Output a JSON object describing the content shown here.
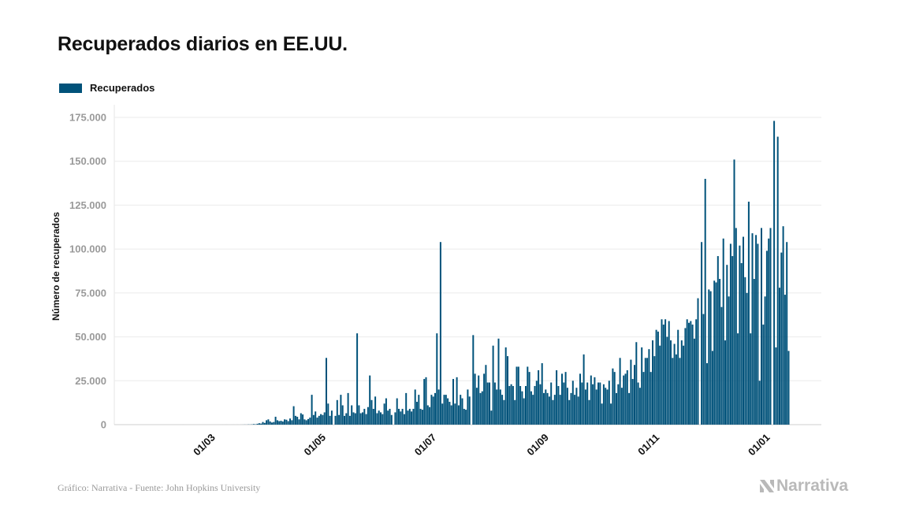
{
  "chart_data": {
    "type": "bar",
    "title": "Recuperados diarios en EE.UU.",
    "ylabel": "Número de recuperados",
    "xlabel": "",
    "x_first": "2020-01-22",
    "x_last": "2021-01-10",
    "interval": "daily",
    "ylim": [
      0,
      175000
    ],
    "yticks": [
      0,
      25000,
      50000,
      75000,
      100000,
      125000,
      150000,
      175000
    ],
    "ytick_labels": [
      "0",
      "25.000",
      "50.000",
      "75.000",
      "100.000",
      "125.000",
      "150.000",
      "175.000"
    ],
    "xticks": [
      {
        "date": "2020-03-01",
        "label": "01/03"
      },
      {
        "date": "2020-05-01",
        "label": "01/05"
      },
      {
        "date": "2020-07-01",
        "label": "01/07"
      },
      {
        "date": "2020-09-01",
        "label": "01/09"
      },
      {
        "date": "2020-11-01",
        "label": "01/11"
      },
      {
        "date": "2021-01-01",
        "label": "01/01"
      }
    ],
    "grid": "horizontal",
    "legend_position": "top-left",
    "series": [
      {
        "name": "Recuperados",
        "color": "#00527a",
        "values": [
          0,
          0,
          0,
          0,
          0,
          0,
          0,
          0,
          0,
          0,
          0,
          0,
          0,
          0,
          0,
          0,
          0,
          0,
          0,
          0,
          0,
          3,
          0,
          0,
          0,
          0,
          0,
          0,
          0,
          0,
          0,
          0,
          0,
          0,
          0,
          0,
          0,
          0,
          0,
          0,
          0,
          1,
          0,
          2,
          0,
          5,
          0,
          0,
          3,
          5,
          0,
          8,
          0,
          12,
          20,
          50,
          30,
          100,
          80,
          150,
          300,
          200,
          500,
          800,
          600,
          1500,
          1000,
          2500,
          3000,
          1800,
          1200,
          1500,
          4500,
          2500,
          2000,
          2200,
          1800,
          3000,
          2800,
          2000,
          3500,
          2500,
          10500,
          5000,
          4500,
          3000,
          6500,
          5800,
          3000,
          2500,
          3200,
          4000,
          17000,
          5500,
          7500,
          4000,
          5000,
          6000,
          5500,
          7000,
          38000,
          12000,
          5000,
          8000,
          0,
          5000,
          14000,
          5500,
          17000,
          11000,
          5000,
          6500,
          18000,
          5000,
          11000,
          7000,
          6500,
          52000,
          11000,
          6500,
          7000,
          9000,
          6000,
          10000,
          28000,
          14000,
          9000,
          16000,
          6500,
          8000,
          7000,
          6000,
          12000,
          15000,
          8000,
          9000,
          5500,
          0,
          7000,
          15000,
          9000,
          7500,
          9000,
          6000,
          18000,
          8000,
          9000,
          7500,
          9000,
          20000,
          13000,
          17000,
          9000,
          8500,
          26000,
          27000,
          11000,
          10000,
          17000,
          16000,
          18000,
          52000,
          20000,
          104000,
          12000,
          17000,
          17000,
          15000,
          13000,
          11000,
          26000,
          12000,
          27000,
          11000,
          17000,
          15000,
          9000,
          8500,
          20000,
          16000,
          0,
          51000,
          29000,
          21000,
          28000,
          18000,
          19000,
          29000,
          34000,
          24000,
          24000,
          8000,
          45000,
          24000,
          20000,
          49000,
          20000,
          17000,
          14000,
          44000,
          39000,
          22000,
          23000,
          22000,
          14000,
          33000,
          33000,
          22000,
          19000,
          15000,
          22000,
          33000,
          30000,
          19000,
          17000,
          22000,
          25000,
          31000,
          23000,
          35000,
          18000,
          20000,
          18000,
          16000,
          24000,
          14000,
          17000,
          31000,
          22000,
          17000,
          29000,
          24000,
          30000,
          21000,
          14000,
          18000,
          25000,
          17000,
          21000,
          16000,
          29000,
          24000,
          40000,
          20000,
          24000,
          14000,
          28000,
          23000,
          27000,
          20000,
          24000,
          24000,
          12000,
          23000,
          21000,
          20000,
          25000,
          12000,
          32000,
          30000,
          18000,
          23000,
          38000,
          21000,
          28000,
          29000,
          31000,
          18000,
          37000,
          26000,
          34000,
          47000,
          24000,
          21000,
          44000,
          30000,
          38000,
          38000,
          43000,
          30000,
          48000,
          39000,
          54000,
          53000,
          45000,
          60000,
          57000,
          60000,
          50000,
          59000,
          48000,
          38000,
          46000,
          40000,
          54000,
          38000,
          48000,
          45000,
          55000,
          60000,
          58000,
          59000,
          57000,
          49000,
          60000,
          72000,
          0,
          104000,
          63000,
          140000,
          35000,
          77000,
          76000,
          42000,
          82000,
          81000,
          96000,
          83000,
          67000,
          106000,
          48000,
          91000,
          73000,
          103000,
          96000,
          151000,
          112000,
          52000,
          102000,
          92000,
          107000,
          84000,
          75000,
          127000,
          52000,
          109000,
          83000,
          108000,
          103000,
          25000,
          112000,
          57000,
          73000,
          99000,
          106000,
          112000,
          0,
          173000,
          44000,
          164000,
          78000,
          98000,
          113000,
          74000,
          104000,
          42000
        ]
      }
    ]
  },
  "legend": {
    "label": "Recuperados"
  },
  "footer": {
    "source": "Gráfico: Narrativa - Fuente: John Hopkins University",
    "logo_text": "Narrativa"
  }
}
